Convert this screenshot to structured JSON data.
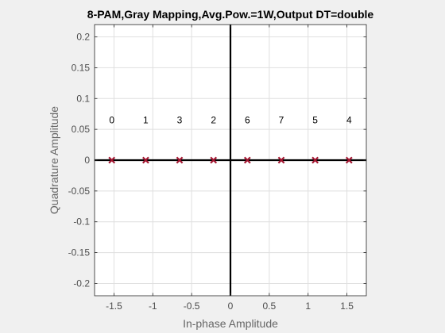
{
  "chart_data": {
    "type": "scatter",
    "title": "8-PAM,Gray Mapping,Avg.Pow.=1W,Output DT=double",
    "xlabel": "In-phase Amplitude",
    "ylabel": "Quadrature Amplitude",
    "xlim": [
      -1.75,
      1.75
    ],
    "ylim": [
      -0.22,
      0.22
    ],
    "grid": true,
    "xticks": [
      -1.5,
      -1,
      -0.5,
      0,
      0.5,
      1,
      1.5
    ],
    "xtick_labels": [
      "-1.5",
      "-1",
      "-0.5",
      "0",
      "0.5",
      "1",
      "1.5"
    ],
    "yticks": [
      -0.2,
      -0.15,
      -0.1,
      -0.05,
      0,
      0.05,
      0.1,
      0.15,
      0.2
    ],
    "ytick_labels": [
      "-0.2",
      "-0.15",
      "-0.1",
      "-0.05",
      "0",
      "0.05",
      "0.1",
      "0.15",
      "0.2"
    ],
    "label_y": 0.065,
    "points": [
      {
        "x": -1.528,
        "y": 0,
        "label": "0"
      },
      {
        "x": -1.091,
        "y": 0,
        "label": "1"
      },
      {
        "x": -0.655,
        "y": 0,
        "label": "3"
      },
      {
        "x": -0.218,
        "y": 0,
        "label": "2"
      },
      {
        "x": 0.218,
        "y": 0,
        "label": "6"
      },
      {
        "x": 0.655,
        "y": 0,
        "label": "7"
      },
      {
        "x": 1.091,
        "y": 0,
        "label": "5"
      },
      {
        "x": 1.528,
        "y": 0,
        "label": "4"
      }
    ],
    "colors": {
      "marker": "#a2142f",
      "axis_lines": "#000000",
      "grid": "#dfdfdf",
      "box": "#262626",
      "figure_bg": "#f0f0f0",
      "axes_bg": "#ffffff"
    }
  }
}
